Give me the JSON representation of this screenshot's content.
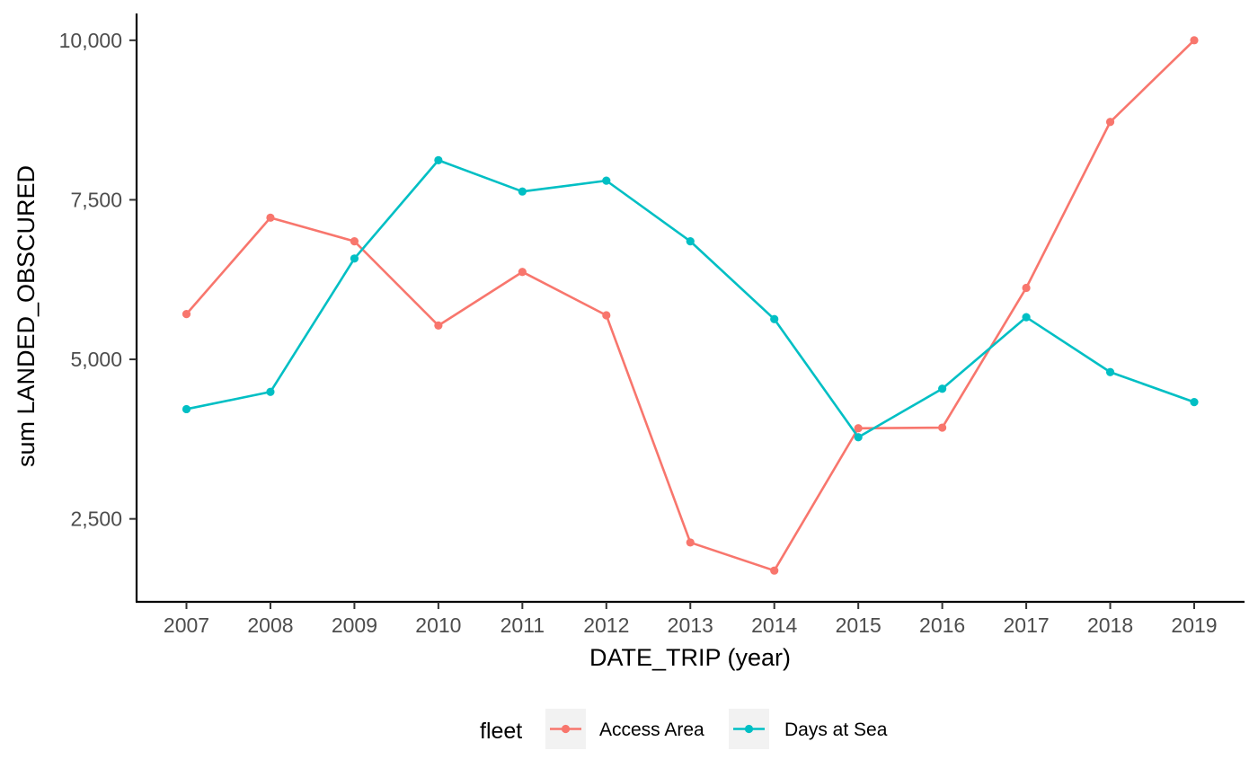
{
  "chart_data": {
    "type": "line",
    "title": "",
    "xlabel": "DATE_TRIP (year)",
    "ylabel": "sum LANDED_OBSCURED",
    "x": [
      "2007",
      "2008",
      "2009",
      "2010",
      "2011",
      "2012",
      "2013",
      "2014",
      "2015",
      "2016",
      "2017",
      "2018",
      "2019"
    ],
    "ylim": [
      1200,
      10420
    ],
    "yticks": [
      2500,
      5000,
      7500,
      10000
    ],
    "ytick_labels": [
      "2,500",
      "5,000",
      "7,500",
      "10,000"
    ],
    "grid": false,
    "legend": {
      "title": "fleet",
      "position": "bottom"
    },
    "series": [
      {
        "name": "Access Area",
        "color": "#F8766D",
        "values": [
          5710,
          7220,
          6850,
          5530,
          6370,
          5690,
          2130,
          1690,
          3920,
          3930,
          6120,
          8720,
          10000
        ]
      },
      {
        "name": "Days at Sea",
        "color": "#00BFC4",
        "values": [
          4220,
          4490,
          6580,
          8120,
          7630,
          7800,
          6850,
          5630,
          3780,
          4540,
          5660,
          4800,
          4330
        ]
      }
    ]
  }
}
